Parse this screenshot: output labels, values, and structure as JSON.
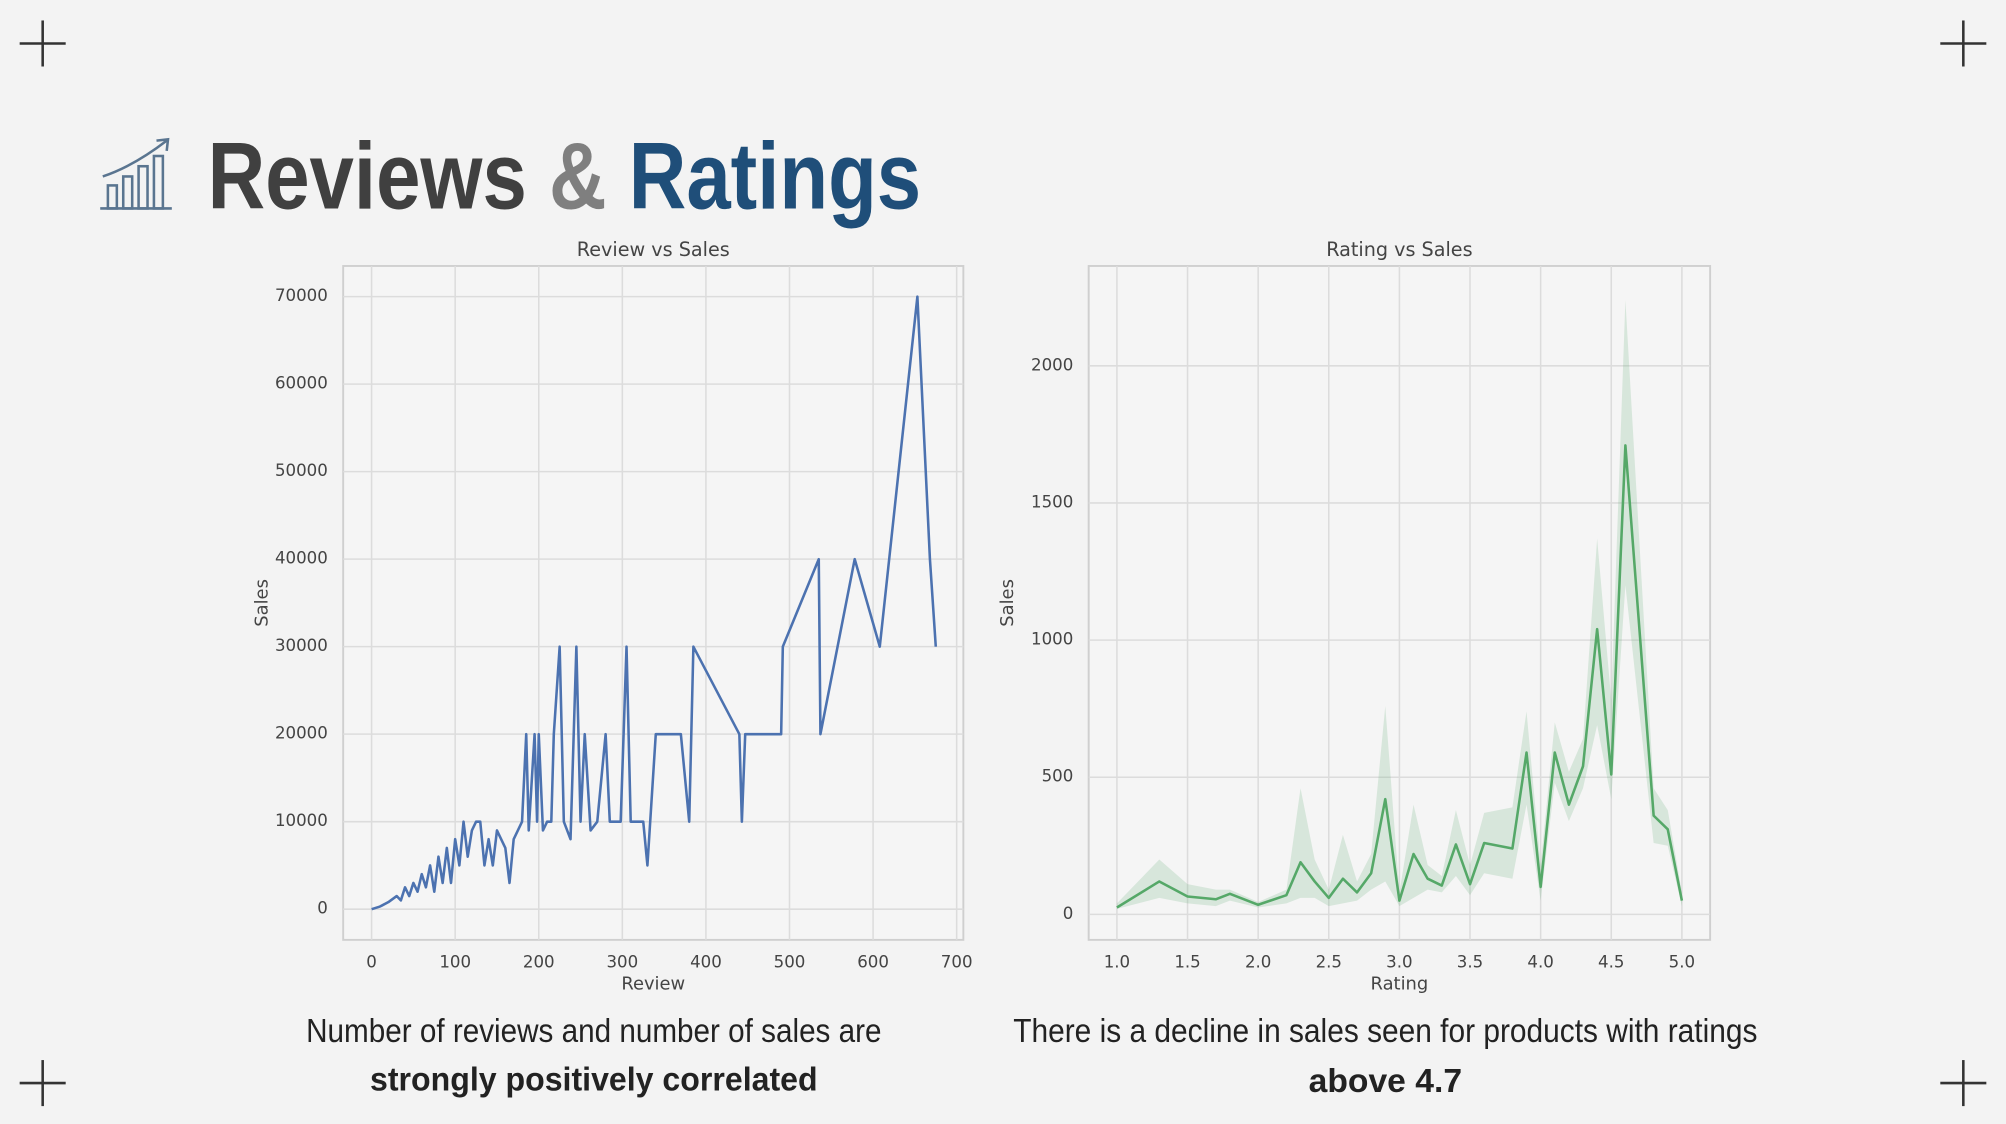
{
  "page_title": {
    "first": "Reviews",
    "amp": "&",
    "second": "Ratings"
  },
  "captions": [
    {
      "line1": "Number of reviews and number of sales are",
      "line2": "strongly positively correlated"
    },
    {
      "line1": "There is a decline in sales seen for products with ratings",
      "line2": "above 4.7"
    }
  ],
  "chart_data": [
    {
      "type": "line",
      "title": "Review vs Sales",
      "xlabel": "Review",
      "ylabel": "Sales",
      "color": "#4c72b0",
      "grid": true,
      "x": [
        0,
        10,
        20,
        30,
        35,
        40,
        45,
        50,
        55,
        60,
        65,
        70,
        75,
        80,
        85,
        90,
        95,
        100,
        105,
        110,
        115,
        120,
        125,
        130,
        135,
        140,
        145,
        150,
        160,
        165,
        170,
        175,
        180,
        185,
        188,
        195,
        198,
        200,
        205,
        210,
        215,
        218,
        225,
        230,
        238,
        245,
        250,
        255,
        262,
        270,
        280,
        285,
        298,
        305,
        310,
        325,
        330,
        340,
        370,
        380,
        385,
        440,
        443,
        447,
        490,
        492,
        535,
        537,
        578,
        608,
        653,
        668,
        675
      ],
      "values": [
        0,
        300,
        800,
        1500,
        1000,
        2500,
        1500,
        3000,
        2000,
        4000,
        2500,
        5000,
        2000,
        6000,
        3000,
        7000,
        3000,
        8000,
        5000,
        10000,
        6000,
        9000,
        10000,
        10000,
        5000,
        8000,
        5000,
        9000,
        7000,
        3000,
        8000,
        9000,
        10000,
        20000,
        9000,
        20000,
        10000,
        20000,
        9000,
        10000,
        10000,
        20000,
        30000,
        10000,
        8000,
        30000,
        10000,
        20000,
        9000,
        10000,
        20000,
        10000,
        10000,
        30000,
        10000,
        10000,
        5000,
        20000,
        20000,
        10000,
        30000,
        20000,
        10000,
        20000,
        20000,
        30000,
        40000,
        20000,
        40000,
        30000,
        70000,
        40000,
        30000
      ],
      "xlim": [
        -34,
        708
      ],
      "ylim": [
        -3507,
        73506
      ],
      "xticks": [
        0,
        100,
        200,
        300,
        400,
        500,
        600,
        700
      ],
      "yticks": [
        0,
        10000,
        20000,
        30000,
        40000,
        50000,
        60000,
        70000
      ]
    },
    {
      "type": "line",
      "title": "Rating vs Sales",
      "xlabel": "Rating",
      "ylabel": "Sales",
      "color": "#55a868",
      "grid": true,
      "x": [
        1.0,
        1.3,
        1.5,
        1.7,
        1.8,
        2.0,
        2.2,
        2.3,
        2.4,
        2.5,
        2.6,
        2.7,
        2.8,
        2.9,
        3.0,
        3.1,
        3.2,
        3.3,
        3.4,
        3.5,
        3.6,
        3.8,
        3.9,
        4.0,
        4.1,
        4.2,
        4.3,
        4.4,
        4.5,
        4.6,
        4.8,
        4.9,
        5.0
      ],
      "values": [
        25,
        120,
        65,
        55,
        75,
        35,
        70,
        190,
        120,
        60,
        130,
        80,
        150,
        420,
        50,
        220,
        130,
        105,
        255,
        110,
        260,
        240,
        590,
        100,
        590,
        400,
        540,
        1040,
        510,
        1710,
        360,
        310,
        50
      ],
      "upper": [
        40,
        200,
        110,
        90,
        90,
        45,
        90,
        460,
        200,
        90,
        290,
        120,
        220,
        760,
        80,
        400,
        180,
        140,
        380,
        180,
        370,
        390,
        740,
        180,
        700,
        520,
        640,
        1370,
        780,
        2240,
        460,
        380,
        80
      ],
      "lower": [
        20,
        60,
        40,
        30,
        50,
        25,
        40,
        60,
        60,
        30,
        40,
        50,
        90,
        120,
        30,
        60,
        90,
        80,
        140,
        70,
        150,
        130,
        400,
        50,
        480,
        340,
        460,
        690,
        420,
        1200,
        260,
        250,
        30
      ],
      "xlim": [
        0.8,
        5.2
      ],
      "ylim": [
        -93,
        2364
      ],
      "xticks": [
        {
          "value": 1,
          "label": "1.0"
        },
        1.5,
        {
          "value": 2,
          "label": "2.0"
        },
        2.5,
        {
          "value": 3,
          "label": "3.0"
        },
        3.5,
        {
          "value": 4,
          "label": "4.0"
        },
        4.5,
        {
          "value": 5,
          "label": "5.0"
        }
      ],
      "yticks": [
        0,
        500,
        1000,
        1500,
        2000
      ]
    }
  ]
}
